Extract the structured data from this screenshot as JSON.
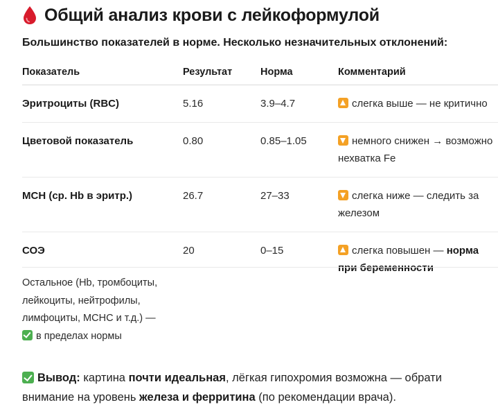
{
  "header": {
    "title": "Общий анализ крови с лейкоформулой",
    "title_icon": "blood-drop-icon",
    "subtitle": "Большинство показателей в норме. Несколько незначительных отклонений:"
  },
  "table": {
    "columns": [
      "Показатель",
      "Результат",
      "Норма",
      "Комментарий"
    ],
    "rows": [
      {
        "name": "Эритроциты (RBC)",
        "result": "5.16",
        "norm": "3.9–4.7",
        "comment_icon": "up-arrow-icon",
        "comment_text": "слегка выше — не критично",
        "comment_bold": ""
      },
      {
        "name": "Цветовой показатель",
        "result": "0.80",
        "norm": "0.85–1.05",
        "comment_icon": "down-arrow-icon",
        "comment_text": "немного снижен → возможно нехватка Fe",
        "comment_bold": ""
      },
      {
        "name": "MCH (ср. Hb в эритр.)",
        "result": "26.7",
        "norm": "27–33",
        "comment_icon": "down-arrow-icon",
        "comment_text": "слегка ниже — следить за железом",
        "comment_bold": ""
      },
      {
        "name": "СОЭ",
        "result": "20",
        "norm": "0–15",
        "comment_icon": "up-arrow-icon",
        "comment_text": "слегка повышен — ",
        "comment_bold": "норма при беременности"
      }
    ],
    "rest_text": "Остальное (Hb, тромбоциты, лейкоциты, нейтрофилы, лимфоциты, MCHC и т.д.) —",
    "rest_icon": "check-icon",
    "rest_status": "в пределах нормы"
  },
  "conclusion": {
    "icon": "check-icon",
    "label": "Вывод:",
    "part1": " картина ",
    "bold1": "почти идеальная",
    "part2": ", лёгкая гипохромия возможна — обрати внимание на уровень ",
    "bold2": "железа и ферритина",
    "part3": " (по рекомендации врача)."
  },
  "colors": {
    "warning_badge": "#f4a125",
    "check_badge": "#4caf50",
    "blood_drop": "#d81b2c"
  }
}
